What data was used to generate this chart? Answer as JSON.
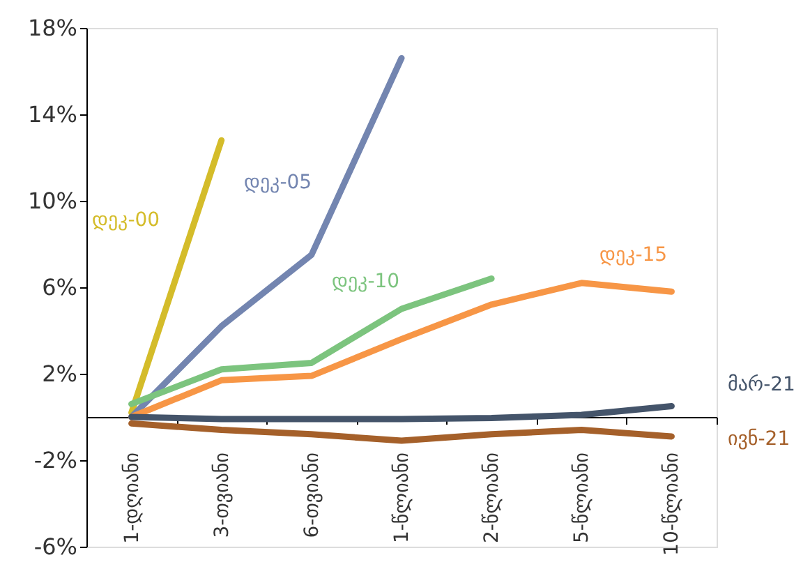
{
  "chart_data": {
    "type": "line",
    "categories": [
      "1-დღიანი",
      "3-თვიანი",
      "6-თვიანი",
      "1-წლიანი",
      "2-წლიანი",
      "5-წლიანი",
      "10-წლიანი"
    ],
    "series": [
      {
        "name": "დეკ-00",
        "color": "#d4bc2a",
        "values": [
          0.2,
          12.8,
          null,
          null,
          null,
          null,
          null
        ]
      },
      {
        "name": "დეკ-05",
        "color": "#7385b0",
        "values": [
          0.0,
          4.2,
          7.5,
          16.6,
          null,
          null,
          null
        ]
      },
      {
        "name": "დეკ-10",
        "color": "#7cc47e",
        "values": [
          0.6,
          2.2,
          2.5,
          5.0,
          6.4,
          null,
          null
        ]
      },
      {
        "name": "დეკ-15",
        "color": "#f79646",
        "values": [
          0.0,
          1.7,
          1.9,
          3.6,
          5.2,
          6.2,
          5.8
        ]
      },
      {
        "name": "მარ-21",
        "color": "#44546a",
        "values": [
          0.0,
          -0.1,
          -0.1,
          -0.1,
          -0.05,
          0.1,
          0.5
        ]
      },
      {
        "name": "ივნ-21",
        "color": "#a5602a",
        "values": [
          -0.3,
          -0.6,
          -0.8,
          -1.1,
          -0.8,
          -0.6,
          -0.9
        ]
      }
    ],
    "ylim": [
      -6,
      18
    ],
    "yticks": [
      {
        "value": -6,
        "label": "-6%"
      },
      {
        "value": -2,
        "label": "-2%"
      },
      {
        "value": 2,
        "label": "2%"
      },
      {
        "value": 6,
        "label": "6%"
      },
      {
        "value": 10,
        "label": "10%"
      },
      {
        "value": 14,
        "label": "14%"
      },
      {
        "value": 18,
        "label": "18%"
      }
    ],
    "grid": false,
    "legend": false,
    "line_style": "solid",
    "marker": "none"
  }
}
